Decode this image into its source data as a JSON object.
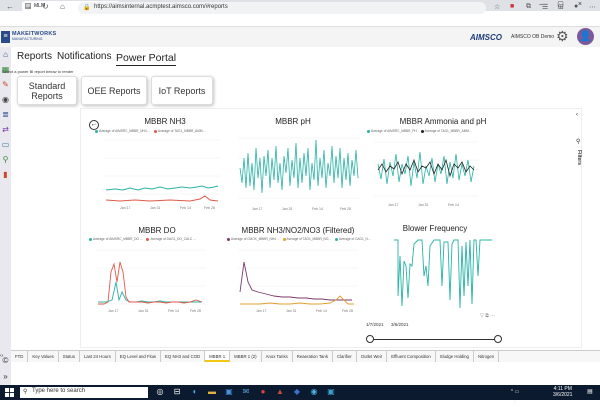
{
  "browser": {
    "tab_title": "MLM",
    "new_tab": "+",
    "url": "https://aimsinternal.acmptest.aimsco.com/#reports"
  },
  "header": {
    "logo_line1": "MAKEITWORKS",
    "logo_line2": "MANUFACTURING",
    "brand": "AIMSCO",
    "user": "AIMSCO OB Demo"
  },
  "nav": {
    "reports": "Reports",
    "notifications": "Notifications",
    "power_portal": "Power Portal",
    "instruction": "Select a power BI report below to render"
  },
  "report_buttons": [
    "Standard Reports",
    "OEE Reports",
    "IoT Reports"
  ],
  "filters_label": "Filters",
  "charts": [
    {
      "title": "MBBR NH3",
      "legend": [
        "Average of AIMSRC_MBBR_NH4 ...",
        "Average of TAG1_MBBR_AMM ..."
      ]
    },
    {
      "title": "MBBR pH",
      "legend": []
    },
    {
      "title": "MBBR Ammonia and pH",
      "legend": [
        "Average of AIMSRC_MBBR_PH",
        "Average of TAG1_MBBR_AMM..."
      ]
    },
    {
      "title": "MBBR DO",
      "legend": [
        "Average of AIMSRC_MBBR_DO ...",
        "Average of DAG1_DO_CALC ..."
      ]
    },
    {
      "title": "MBBR NH3/NO2/NO3 (Filtered)",
      "legend": [
        "Average of CMOX_MBBR_NH4...",
        "Average of TAG1_MBBR_NO...",
        "Average of CAG1_N..."
      ]
    },
    {
      "title": "Blower Frequency",
      "legend": []
    }
  ],
  "axis_dates": {
    "c1": [
      "Jan 17",
      "Jan 31",
      "Feb 14",
      "Feb 28"
    ],
    "c2": [
      "Jan 17",
      "Jan 31",
      "Feb 14",
      "Feb 28"
    ],
    "c3": [
      "Jan 17",
      "Jan 31",
      "Feb 14"
    ],
    "c4": [
      "Jan 17",
      "Jan 31",
      "Feb 14",
      "Feb 28"
    ],
    "c5": [
      "Jan 17",
      "Jan 31",
      "Feb 14",
      "Feb 28"
    ]
  },
  "slider": {
    "start": "1/7/2021",
    "end": "3/6/2021"
  },
  "page_tabs": [
    "FTD",
    "Key Values",
    "Status",
    "Last 24 Hours",
    "EQ Level and Flow",
    "EQ NH3 and COD",
    "MBBR 1",
    "MBBR 1 (2)",
    "Anox Tanks",
    "Reaeration Tank",
    "Clarifier",
    "Outlet Weir",
    "Effluent Composition",
    "Sludge Holding",
    "Nitrogen"
  ],
  "active_tab": "MBBR 1",
  "taskbar": {
    "search_placeholder": "Type here to search",
    "time": "4:11 PM",
    "date": "3/6/2021"
  },
  "colors": {
    "teal": "#2ab3a6",
    "red": "#e05a4a",
    "black": "#222222",
    "purple": "#7a3a6a",
    "orange": "#e0a030",
    "pbi_yellow": "#f2c811"
  }
}
